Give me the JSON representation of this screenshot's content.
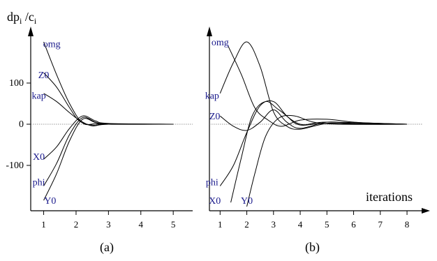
{
  "figure": {
    "ylabel_main": "dp",
    "ylabel_sub1": "i",
    "ylabel_sep": " /c",
    "ylabel_sub2": "i",
    "colors": {
      "curve": "#000000",
      "label": "#1a1a8c",
      "zero_line": "#777777"
    }
  },
  "chart_data": [
    {
      "type": "line",
      "panel_label": "(a)",
      "xlabel": "",
      "xticks": [
        1,
        2,
        3,
        4,
        5
      ],
      "yticks": [
        100,
        0,
        -100
      ],
      "ylim": [
        -200,
        200
      ],
      "xlim": [
        0.6,
        5.6
      ],
      "grid": false,
      "zero_line": true,
      "series": [
        {
          "name": "omg",
          "label_x": 1.25,
          "label_y": 196,
          "points": [
            [
              1,
              200
            ],
            [
              1.4,
              120
            ],
            [
              1.8,
              50
            ],
            [
              2.2,
              3
            ],
            [
              2.6,
              1
            ],
            [
              3,
              0
            ],
            [
              5,
              0
            ]
          ]
        },
        {
          "name": "Z0",
          "label_x": 1.0,
          "label_y": 120,
          "points": [
            [
              1,
              125
            ],
            [
              1.4,
              90
            ],
            [
              1.8,
              40
            ],
            [
              2.1,
              8
            ],
            [
              2.5,
              -2
            ],
            [
              3,
              0
            ],
            [
              5,
              0
            ]
          ]
        },
        {
          "name": "kap",
          "label_x": 0.85,
          "label_y": 70,
          "points": [
            [
              1,
              75
            ],
            [
              1.4,
              55
            ],
            [
              1.8,
              28
            ],
            [
              2.1,
              10
            ],
            [
              2.5,
              -4
            ],
            [
              3,
              0
            ],
            [
              5,
              0
            ]
          ]
        },
        {
          "name": "X0",
          "label_x": 0.85,
          "label_y": -78,
          "points": [
            [
              1,
              -85
            ],
            [
              1.4,
              -55
            ],
            [
              1.8,
              -10
            ],
            [
              2.2,
              20
            ],
            [
              2.6,
              8
            ],
            [
              3,
              2
            ],
            [
              5,
              0
            ]
          ]
        },
        {
          "name": "phi",
          "label_x": 0.85,
          "label_y": -140,
          "points": [
            [
              1,
              -150
            ],
            [
              1.4,
              -95
            ],
            [
              1.8,
              -25
            ],
            [
              2.2,
              16
            ],
            [
              2.6,
              5
            ],
            [
              3,
              1
            ],
            [
              5,
              0
            ]
          ]
        },
        {
          "name": "Y0",
          "label_x": 1.2,
          "label_y": -185,
          "points": [
            [
              1,
              -185
            ],
            [
              1.4,
              -120
            ],
            [
              1.8,
              -40
            ],
            [
              2.2,
              12
            ],
            [
              2.6,
              4
            ],
            [
              3,
              0
            ],
            [
              5,
              0
            ]
          ]
        }
      ]
    },
    {
      "type": "line",
      "panel_label": "(b)",
      "xlabel": "iterations",
      "xticks": [
        1,
        2,
        3,
        4,
        5,
        6,
        7,
        8
      ],
      "yticks": [],
      "ylim": [
        -200,
        200
      ],
      "xlim": [
        0.6,
        8.6
      ],
      "grid": false,
      "zero_line": true,
      "series": [
        {
          "name": "omg",
          "label_x": 1.0,
          "label_y": 200,
          "points": [
            [
              1.3,
              190
            ],
            [
              1.8,
              120
            ],
            [
              2.3,
              40
            ],
            [
              2.8,
              10
            ],
            [
              3.3,
              -5
            ],
            [
              4,
              10
            ],
            [
              5,
              12
            ],
            [
              6,
              5
            ],
            [
              7,
              2
            ],
            [
              8,
              0
            ]
          ]
        },
        {
          "name": "kap",
          "label_x": 0.7,
          "label_y": 70,
          "points": [
            [
              1,
              75
            ],
            [
              1.5,
              150
            ],
            [
              2,
              200
            ],
            [
              2.5,
              140
            ],
            [
              3,
              30
            ],
            [
              3.5,
              -5
            ],
            [
              4,
              -12
            ],
            [
              5,
              2
            ],
            [
              6,
              0
            ],
            [
              8,
              0
            ]
          ]
        },
        {
          "name": "Z0",
          "label_x": 0.8,
          "label_y": 20,
          "points": [
            [
              1,
              20
            ],
            [
              1.5,
              -5
            ],
            [
              2,
              -15
            ],
            [
              2.5,
              5
            ],
            [
              3,
              35
            ],
            [
              3.5,
              5
            ],
            [
              4,
              -10
            ],
            [
              5,
              5
            ],
            [
              6,
              2
            ],
            [
              8,
              0
            ]
          ]
        },
        {
          "name": "phi",
          "label_x": 0.7,
          "label_y": -140,
          "points": [
            [
              1,
              -150
            ],
            [
              1.5,
              -100
            ],
            [
              2,
              -20
            ],
            [
              2.5,
              45
            ],
            [
              3,
              55
            ],
            [
              3.5,
              20
            ],
            [
              4,
              -2
            ],
            [
              5,
              2
            ],
            [
              8,
              0
            ]
          ]
        },
        {
          "name": "X0",
          "label_x": 0.8,
          "label_y": -185,
          "points": [
            [
              1.4,
              -190
            ],
            [
              1.8,
              -80
            ],
            [
              2.2,
              20
            ],
            [
              2.7,
              55
            ],
            [
              3.2,
              35
            ],
            [
              4,
              0
            ],
            [
              5,
              5
            ],
            [
              8,
              0
            ]
          ]
        },
        {
          "name": "Y0",
          "label_x": 2.0,
          "label_y": -185,
          "points": [
            [
              2,
              -200
            ],
            [
              2.3,
              -120
            ],
            [
              2.7,
              -30
            ],
            [
              3.2,
              15
            ],
            [
              3.8,
              20
            ],
            [
              4.5,
              5
            ],
            [
              5.5,
              0
            ],
            [
              8,
              0
            ]
          ]
        }
      ]
    }
  ]
}
